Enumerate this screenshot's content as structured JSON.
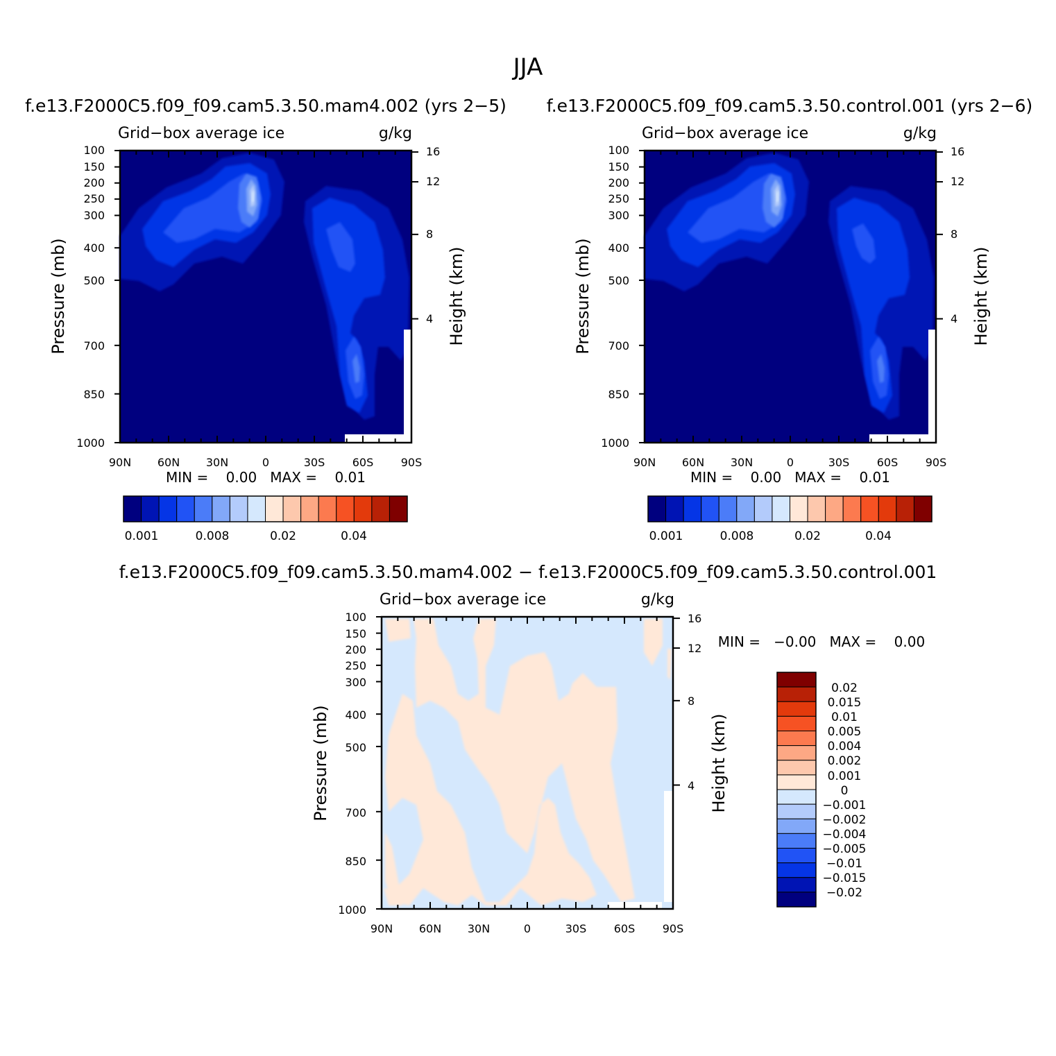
{
  "figure": {
    "title": "JJA"
  },
  "colors": {
    "abs_levels": [
      "#00007f",
      "#0014b4",
      "#0535e6",
      "#2153f5",
      "#4b7cf8",
      "#82a8f8",
      "#b3cbfb",
      "#d5e8fd",
      "#ffe8d8",
      "#fdc8ad",
      "#fda884",
      "#fc7a4f",
      "#f65223",
      "#e33a0c",
      "#b82106",
      "#7f0000"
    ],
    "diff_levels": [
      "#00007f",
      "#0014b4",
      "#0535e6",
      "#2153f5",
      "#4b7cf8",
      "#82a8f8",
      "#b3cbfb",
      "#d5e8fd",
      "#ffe8d8",
      "#fdc8ad",
      "#fda884",
      "#fc7a4f",
      "#f65223",
      "#e33a0c",
      "#b82106",
      "#7f0000"
    ]
  },
  "chart_data": [
    {
      "type": "heatmap",
      "title": "f.e13.F2000C5.f09_f09.cam5.3.50.mam4.002 (yrs 2−5)",
      "left_label": "Grid−box average ice",
      "right_label": "g/kg",
      "ylabel": "Pressure (mb)",
      "ylabel_right": "Height (km)",
      "x_ticks": [
        "90N",
        "60N",
        "30N",
        "0",
        "30S",
        "60S",
        "90S"
      ],
      "y_ticks": [
        "100",
        "150",
        "200",
        "250",
        "300",
        "400",
        "500",
        "700",
        "850",
        "1000"
      ],
      "y_ticks_right": [
        "16",
        "12",
        "8",
        "4"
      ],
      "stats_label": "MIN =    0.00   MAX =    0.01",
      "colorbar_labels": [
        "0.001",
        "0.008",
        "0.02",
        "0.04"
      ],
      "x": [
        90,
        -90
      ],
      "ylim": [
        1000,
        100
      ],
      "features": [
        {
          "lat": 8,
          "p": 250,
          "value": 0.008
        },
        {
          "lat": -58,
          "p": 380,
          "value": 0.004
        },
        {
          "lat": -60,
          "p": 760,
          "value": 0.005
        }
      ]
    },
    {
      "type": "heatmap",
      "title": "f.e13.F2000C5.f09_f09.cam5.3.50.control.001 (yrs 2−6)",
      "left_label": "Grid−box average ice",
      "right_label": "g/kg",
      "ylabel": "Pressure (mb)",
      "ylabel_right": "Height (km)",
      "x_ticks": [
        "90N",
        "60N",
        "30N",
        "0",
        "30S",
        "60S",
        "90S"
      ],
      "y_ticks": [
        "100",
        "150",
        "200",
        "250",
        "300",
        "400",
        "500",
        "700",
        "850",
        "1000"
      ],
      "y_ticks_right": [
        "16",
        "12",
        "8",
        "4"
      ],
      "stats_label": "MIN =    0.00   MAX =    0.01",
      "colorbar_labels": [
        "0.001",
        "0.008",
        "0.02",
        "0.04"
      ],
      "x": [
        90,
        -90
      ],
      "ylim": [
        1000,
        100
      ],
      "features": [
        {
          "lat": 8,
          "p": 250,
          "value": 0.008
        },
        {
          "lat": -58,
          "p": 380,
          "value": 0.004
        },
        {
          "lat": -60,
          "p": 760,
          "value": 0.005
        }
      ]
    },
    {
      "type": "heatmap",
      "title": "f.e13.F2000C5.f09_f09.cam5.3.50.mam4.002 − f.e13.F2000C5.f09_f09.cam5.3.50.control.001",
      "left_label": "Grid−box average ice",
      "right_label": "g/kg",
      "ylabel": "Pressure (mb)",
      "ylabel_right": "Height (km)",
      "x_ticks": [
        "90N",
        "60N",
        "30N",
        "0",
        "30S",
        "60S",
        "90S"
      ],
      "y_ticks": [
        "100",
        "150",
        "200",
        "250",
        "300",
        "400",
        "500",
        "700",
        "850",
        "1000"
      ],
      "y_ticks_right": [
        "16",
        "12",
        "8",
        "4"
      ],
      "stats_label": "MIN =   −0.00   MAX =    0.00",
      "colorbar_labels": [
        "0.02",
        "0.015",
        "0.01",
        "0.005",
        "0.004",
        "0.002",
        "0.001",
        "0",
        "−0.001",
        "−0.002",
        "−0.004",
        "−0.005",
        "−0.01",
        "−0.015",
        "−0.02"
      ],
      "x": [
        90,
        -90
      ],
      "ylim": [
        1000,
        100
      ]
    }
  ]
}
